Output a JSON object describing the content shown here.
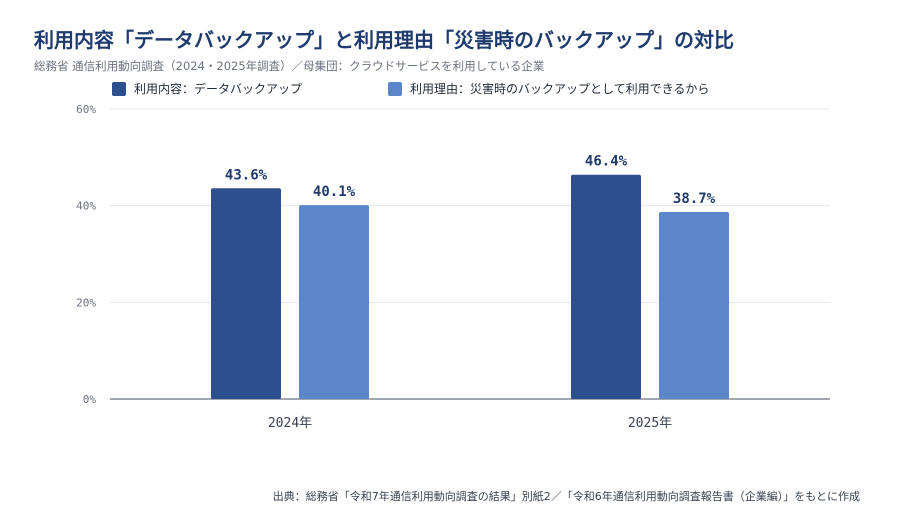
{
  "header": {
    "title": "利用内容「データバックアップ」と利用理由「災害時のバックアップ」の対比",
    "subtitle": "総務省 通信利用動向調査（2024・2025年調査）／母集団：クラウドサービスを利用している企業"
  },
  "footer": {
    "source": "出典：総務省「令和7年通信利用動向調査の結果」別紙2／「令和6年通信利用動向調査報告書（企業編）」をもとに作成"
  },
  "chart_data": {
    "type": "bar",
    "categories": [
      "2024年",
      "2025年"
    ],
    "series": [
      {
        "name": "利用内容：データバックアップ",
        "color": "#2d4f8e",
        "values": [
          43.6,
          46.4
        ],
        "labels": [
          "43.6%",
          "46.4%"
        ]
      },
      {
        "name": "利用理由：災害時のバックアップとして利用できるから",
        "color": "#5b86c9",
        "values": [
          40.1,
          38.7
        ],
        "labels": [
          "40.1%",
          "38.7%"
        ]
      }
    ],
    "ylim": [
      0,
      60
    ],
    "yticks": [
      0,
      20,
      40,
      60
    ],
    "ytick_labels": [
      "0%",
      "20%",
      "40%",
      "60%"
    ],
    "grid": true,
    "legend_position": "top-left"
  }
}
